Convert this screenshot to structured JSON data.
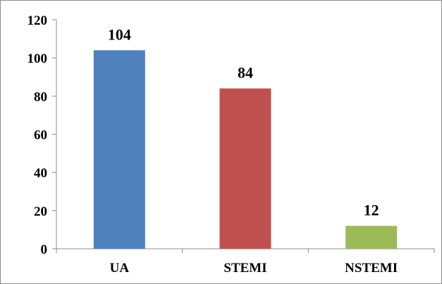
{
  "chart_data": {
    "type": "bar",
    "categories": [
      "UA",
      "STEMI",
      "NSTEMI"
    ],
    "values": [
      104,
      84,
      12
    ],
    "data_labels": [
      "104",
      "84",
      "12"
    ],
    "colors": [
      "#4f81bd",
      "#c0504d",
      "#9bbb59"
    ],
    "title": "",
    "xlabel": "",
    "ylabel": "",
    "ylim": [
      0,
      120
    ],
    "yticks": [
      0,
      20,
      40,
      60,
      80,
      100,
      120
    ],
    "ytick_labels": [
      "0",
      "20",
      "40",
      "60",
      "80",
      "100",
      "120"
    ],
    "grid": false,
    "legend": "none"
  }
}
